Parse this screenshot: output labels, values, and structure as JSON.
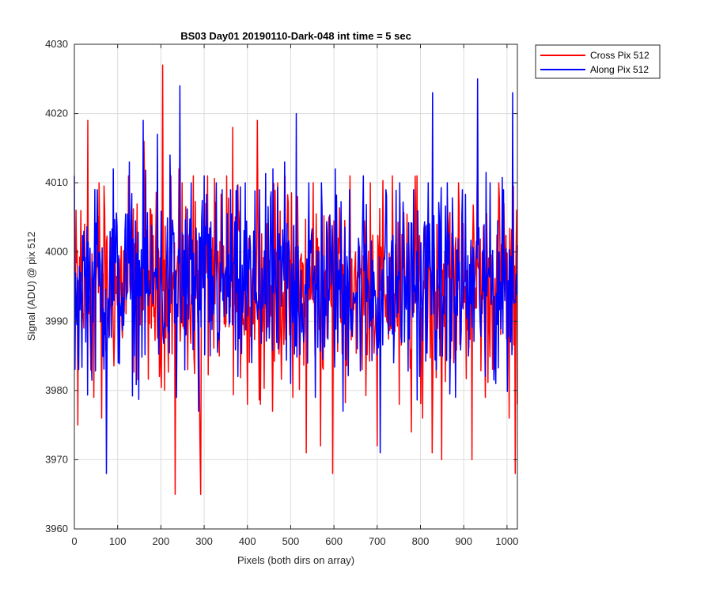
{
  "chart_data": {
    "type": "line",
    "title": "BS03 Day01 20190110-Dark-048 int time = 5 sec",
    "xlabel": "Pixels (both dirs on array)",
    "ylabel": "Signal (ADU) @ pix 512",
    "xlim": [
      0,
      1024
    ],
    "ylim": [
      3960,
      4030
    ],
    "xticks": [
      0,
      100,
      200,
      300,
      400,
      500,
      600,
      700,
      800,
      900,
      1000
    ],
    "yticks": [
      3960,
      3970,
      3980,
      3990,
      4000,
      4010,
      4020,
      4030
    ],
    "grid": true,
    "legend_position": "outside top-right",
    "series": [
      {
        "name": "Cross Pix 512",
        "color": "#ff0000",
        "x": [
          1,
          8,
          15,
          22,
          31,
          45,
          57,
          63,
          70,
          84,
          96,
          104,
          125,
          142,
          161,
          178,
          195,
          204,
          213,
          223,
          233,
          249,
          262,
          275,
          290,
          292,
          308,
          321,
          335,
          352,
          366,
          381,
          400,
          418,
          423,
          440,
          458,
          470,
          487,
          505,
          516,
          536,
          552,
          569,
          580,
          597,
          610,
          628,
          637,
          650,
          665,
          684,
          700,
          716,
          735,
          751,
          766,
          779,
          792,
          805,
          827,
          838,
          849,
          862,
          877,
          888,
          900,
          919,
          931,
          950,
          968,
          981,
          993,
          1005,
          1019,
          1024
        ],
        "y": [
          3994,
          3975,
          4006,
          3989,
          4019,
          3979,
          4010,
          3976,
          4006,
          3992,
          3994,
          3999,
          4011,
          4001,
          4016,
          3989,
          4000,
          4027,
          3998,
          4011,
          3965,
          4010,
          3983,
          4011,
          3974,
          3965,
          4011,
          3996,
          3985,
          4011,
          4018,
          4003,
          3978,
          3993,
          4019,
          3993,
          3977,
          4010,
          4011,
          3979,
          4008,
          3971,
          4010,
          3972,
          3997,
          3968,
          4002,
          3995,
          4011,
          4000,
          3983,
          4010,
          3972,
          3994,
          4011,
          3978,
          3992,
          3974,
          4011,
          3976,
          3971,
          4004,
          3970,
          4008,
          3984,
          4010,
          3995,
          3970,
          4010,
          3979,
          3993,
          4010,
          4007,
          3976,
          3968,
          3978
        ]
      },
      {
        "name": "Along Pix 512",
        "color": "#0000ff",
        "x": [
          0,
          10,
          22,
          39,
          53,
          74,
          90,
          107,
          117,
          127,
          140,
          159,
          176,
          192,
          205,
          221,
          236,
          244,
          258,
          270,
          287,
          300,
          314,
          328,
          343,
          361,
          378,
          395,
          410,
          428,
          445,
          459,
          471,
          486,
          500,
          513,
          530,
          542,
          557,
          571,
          589,
          603,
          621,
          636,
          654,
          668,
          682,
          707,
          720,
          738,
          752,
          763,
          784,
          798,
          818,
          828,
          845,
          862,
          881,
          897,
          911,
          932,
          950,
          961,
          974,
          992,
          1008,
          1013,
          1024
        ],
        "y": [
          4011,
          3983,
          4003,
          3986,
          4009,
          3968,
          4012,
          3991,
          4003,
          4013,
          3995,
          4019,
          3994,
          4017,
          3988,
          4014,
          3979,
          4024,
          3988,
          4010,
          3977,
          4011,
          3985,
          4010,
          3993,
          4009,
          3982,
          4010,
          3984,
          4009,
          3990,
          4012,
          3986,
          4013,
          3981,
          4020,
          3987,
          4010,
          3979,
          4010,
          3993,
          4012,
          3977,
          4009,
          3986,
          4011,
          3989,
          3971,
          4009,
          3984,
          4010,
          3987,
          4009,
          3982,
          4010,
          4023,
          3985,
          4010,
          3979,
          4009,
          3985,
          4025,
          3982,
          4010,
          3981,
          4009,
          3987,
          4023,
          4001
        ]
      }
    ]
  }
}
